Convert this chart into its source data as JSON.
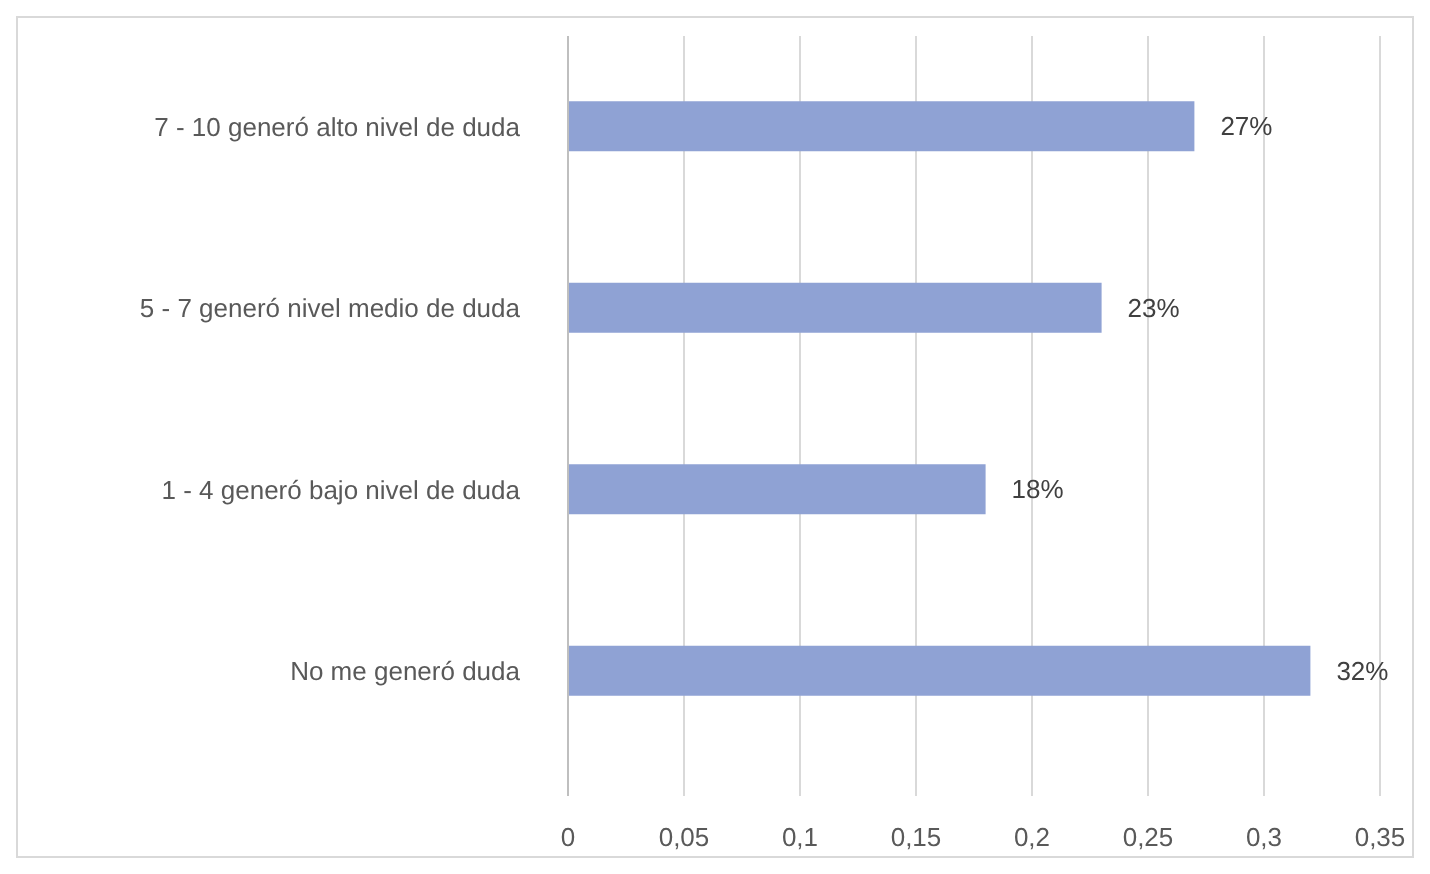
{
  "chart_data": {
    "type": "bar",
    "orientation": "horizontal",
    "categories": [
      "7 - 10 generó alto nivel de duda",
      "5 - 7 generó nivel medio de duda",
      "1 - 4 generó bajo nivel de duda",
      "No me generó duda"
    ],
    "values": [
      0.27,
      0.23,
      0.18,
      0.32
    ],
    "value_labels": [
      "27%",
      "23%",
      "18%",
      "32%"
    ],
    "color": "#8fa2d4",
    "xlim": [
      0,
      0.35
    ],
    "xticks": [
      0,
      {
        "value": 0.05,
        "label": "0,05"
      },
      {
        "value": 0.1,
        "label": "0,1"
      },
      {
        "value": 0.15,
        "label": "0,15"
      },
      {
        "value": 0.2,
        "label": "0,2"
      },
      {
        "value": 0.25,
        "label": "0,25"
      },
      {
        "value": 0.3,
        "label": "0,3"
      },
      {
        "value": 0.35,
        "label": "0,35"
      }
    ],
    "grid": "x"
  }
}
